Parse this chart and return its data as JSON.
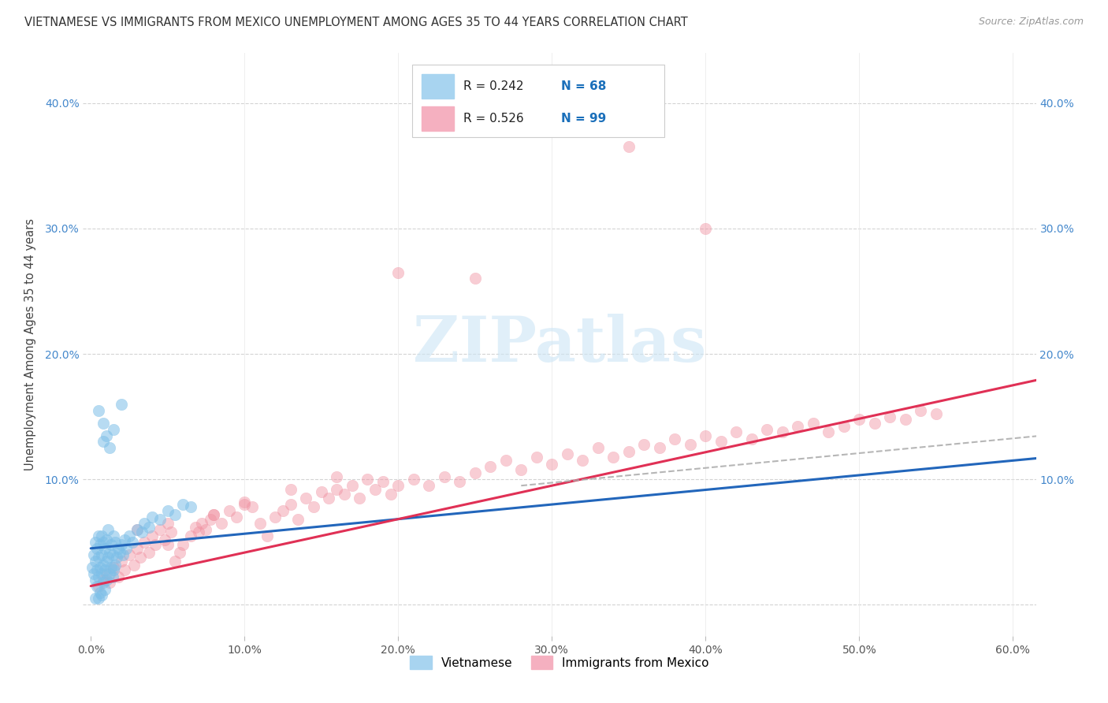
{
  "title": "VIETNAMESE VS IMMIGRANTS FROM MEXICO UNEMPLOYMENT AMONG AGES 35 TO 44 YEARS CORRELATION CHART",
  "source": "Source: ZipAtlas.com",
  "ylabel": "Unemployment Among Ages 35 to 44 years",
  "xlim": [
    -0.005,
    0.615
  ],
  "ylim": [
    -0.025,
    0.44
  ],
  "xticks": [
    0.0,
    0.1,
    0.2,
    0.3,
    0.4,
    0.5,
    0.6
  ],
  "yticks": [
    0.0,
    0.1,
    0.2,
    0.3,
    0.4
  ],
  "xtick_labels": [
    "0.0%",
    "10.0%",
    "20.0%",
    "30.0%",
    "40.0%",
    "50.0%",
    "60.0%"
  ],
  "ytick_labels": [
    "",
    "10.0%",
    "20.0%",
    "30.0%",
    "40.0%"
  ],
  "blue_color": "#7dbfe8",
  "pink_color": "#f090a0",
  "blue_line_color": "#2266bb",
  "pink_line_color": "#e03055",
  "dashed_color": "#aaaaaa",
  "watermark_color": "#cce5f5",
  "title_color": "#333333",
  "source_color": "#999999",
  "tick_label_color_y": "#4488cc",
  "tick_label_color_x": "#555555",
  "R_viet": 0.242,
  "N_viet": 68,
  "R_mex": 0.526,
  "N_mex": 99,
  "viet_x": [
    0.001,
    0.002,
    0.002,
    0.003,
    0.003,
    0.003,
    0.004,
    0.004,
    0.004,
    0.005,
    0.005,
    0.005,
    0.005,
    0.006,
    0.006,
    0.006,
    0.007,
    0.007,
    0.007,
    0.007,
    0.008,
    0.008,
    0.008,
    0.009,
    0.009,
    0.009,
    0.01,
    0.01,
    0.01,
    0.011,
    0.011,
    0.012,
    0.012,
    0.013,
    0.013,
    0.014,
    0.014,
    0.015,
    0.015,
    0.016,
    0.016,
    0.017,
    0.018,
    0.019,
    0.02,
    0.021,
    0.022,
    0.023,
    0.025,
    0.027,
    0.03,
    0.033,
    0.035,
    0.038,
    0.04,
    0.045,
    0.05,
    0.055,
    0.06,
    0.065,
    0.005,
    0.008,
    0.01,
    0.02,
    0.015,
    0.012,
    0.008,
    0.003
  ],
  "viet_y": [
    0.03,
    0.025,
    0.04,
    0.02,
    0.035,
    0.05,
    0.015,
    0.028,
    0.045,
    0.022,
    0.038,
    0.055,
    0.005,
    0.03,
    0.048,
    0.01,
    0.025,
    0.04,
    0.055,
    0.008,
    0.032,
    0.05,
    0.018,
    0.028,
    0.045,
    0.012,
    0.035,
    0.052,
    0.02,
    0.038,
    0.06,
    0.025,
    0.042,
    0.03,
    0.048,
    0.022,
    0.04,
    0.028,
    0.055,
    0.032,
    0.05,
    0.038,
    0.045,
    0.042,
    0.048,
    0.04,
    0.052,
    0.045,
    0.055,
    0.05,
    0.06,
    0.058,
    0.065,
    0.062,
    0.07,
    0.068,
    0.075,
    0.072,
    0.08,
    0.078,
    0.155,
    0.145,
    0.135,
    0.16,
    0.14,
    0.125,
    0.13,
    0.005
  ],
  "mex_x": [
    0.005,
    0.008,
    0.01,
    0.012,
    0.015,
    0.018,
    0.02,
    0.022,
    0.025,
    0.028,
    0.03,
    0.032,
    0.035,
    0.038,
    0.04,
    0.042,
    0.045,
    0.048,
    0.05,
    0.052,
    0.055,
    0.058,
    0.06,
    0.065,
    0.068,
    0.07,
    0.072,
    0.075,
    0.078,
    0.08,
    0.085,
    0.09,
    0.095,
    0.1,
    0.105,
    0.11,
    0.115,
    0.12,
    0.125,
    0.13,
    0.135,
    0.14,
    0.145,
    0.15,
    0.155,
    0.16,
    0.165,
    0.17,
    0.175,
    0.18,
    0.185,
    0.19,
    0.195,
    0.2,
    0.21,
    0.22,
    0.23,
    0.24,
    0.25,
    0.26,
    0.27,
    0.28,
    0.29,
    0.3,
    0.31,
    0.32,
    0.33,
    0.34,
    0.35,
    0.36,
    0.37,
    0.38,
    0.39,
    0.4,
    0.41,
    0.42,
    0.43,
    0.44,
    0.45,
    0.46,
    0.47,
    0.48,
    0.49,
    0.5,
    0.51,
    0.52,
    0.53,
    0.54,
    0.55,
    0.03,
    0.05,
    0.08,
    0.1,
    0.13,
    0.16,
    0.2,
    0.25,
    0.35,
    0.4
  ],
  "mex_y": [
    0.015,
    0.02,
    0.025,
    0.018,
    0.03,
    0.022,
    0.035,
    0.028,
    0.04,
    0.032,
    0.045,
    0.038,
    0.05,
    0.042,
    0.055,
    0.048,
    0.06,
    0.052,
    0.065,
    0.058,
    0.035,
    0.042,
    0.048,
    0.055,
    0.062,
    0.058,
    0.065,
    0.06,
    0.068,
    0.072,
    0.065,
    0.075,
    0.07,
    0.08,
    0.078,
    0.065,
    0.055,
    0.07,
    0.075,
    0.08,
    0.068,
    0.085,
    0.078,
    0.09,
    0.085,
    0.092,
    0.088,
    0.095,
    0.085,
    0.1,
    0.092,
    0.098,
    0.088,
    0.095,
    0.1,
    0.095,
    0.102,
    0.098,
    0.105,
    0.11,
    0.115,
    0.108,
    0.118,
    0.112,
    0.12,
    0.115,
    0.125,
    0.118,
    0.122,
    0.128,
    0.125,
    0.132,
    0.128,
    0.135,
    0.13,
    0.138,
    0.132,
    0.14,
    0.138,
    0.142,
    0.145,
    0.138,
    0.142,
    0.148,
    0.145,
    0.15,
    0.148,
    0.155,
    0.152,
    0.06,
    0.048,
    0.072,
    0.082,
    0.092,
    0.102,
    0.265,
    0.26,
    0.365,
    0.3
  ],
  "legend_box_color": "#f0f4f8",
  "legend_border_color": "#cccccc"
}
